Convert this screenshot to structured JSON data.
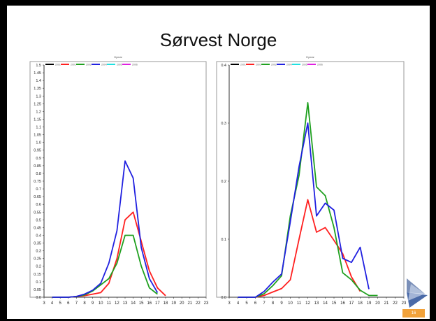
{
  "slide": {
    "title": "Sørvest Norge",
    "page_number": "16"
  },
  "chart_data": [
    {
      "type": "line",
      "title": "Hymar",
      "x_ticks": [
        3,
        4,
        5,
        6,
        7,
        8,
        9,
        10,
        11,
        12,
        13,
        14,
        15,
        16,
        17,
        18,
        19,
        20,
        21,
        22,
        23
      ],
      "y_ticks": [
        "0.0",
        "0.05",
        "0.1",
        "0.15",
        "0.2",
        "0.25",
        "0.3",
        "0.35",
        "0.4",
        "0.45",
        "0.5",
        "0.55",
        "0.6",
        "0.65",
        "0.7",
        "0.75",
        "0.8",
        "0.85",
        "0.9",
        "0.95",
        "1.0",
        "1.05",
        "1.1",
        "1.15",
        "1.2",
        "1.25",
        "1.3",
        "1.35",
        "1.4",
        "1.45",
        "1.5"
      ],
      "xlim": [
        3,
        23
      ],
      "ylim": [
        0,
        1.5
      ],
      "legend_position": "top-left",
      "series": [
        {
          "name": "2001",
          "color": "#000000",
          "points": []
        },
        {
          "name": "2001",
          "color": "#ff2020",
          "points": [
            [
              4,
              0
            ],
            [
              5,
              0
            ],
            [
              6,
              0
            ],
            [
              7,
              0.005
            ],
            [
              8,
              0.01
            ],
            [
              9,
              0.02
            ],
            [
              10,
              0.03
            ],
            [
              11,
              0.09
            ],
            [
              12,
              0.25
            ],
            [
              13,
              0.5
            ],
            [
              14,
              0.55
            ],
            [
              15,
              0.36
            ],
            [
              16,
              0.17
            ],
            [
              17,
              0.06
            ],
            [
              18,
              0.01
            ]
          ]
        },
        {
          "name": "2002",
          "color": "#1fa01f",
          "points": [
            [
              4,
              0
            ],
            [
              5,
              0
            ],
            [
              6,
              0
            ],
            [
              7,
              0.005
            ],
            [
              8,
              0.015
            ],
            [
              9,
              0.04
            ],
            [
              10,
              0.08
            ],
            [
              11,
              0.12
            ],
            [
              12,
              0.22
            ],
            [
              13,
              0.4
            ],
            [
              14,
              0.4
            ],
            [
              15,
              0.2
            ],
            [
              16,
              0.06
            ],
            [
              17,
              0.02
            ]
          ]
        },
        {
          "name": "2004",
          "color": "#2020e0",
          "points": [
            [
              4,
              0
            ],
            [
              5,
              0
            ],
            [
              6,
              0
            ],
            [
              7,
              0.005
            ],
            [
              8,
              0.02
            ],
            [
              9,
              0.045
            ],
            [
              10,
              0.09
            ],
            [
              11,
              0.22
            ],
            [
              12,
              0.43
            ],
            [
              13,
              0.88
            ],
            [
              14,
              0.77
            ],
            [
              15,
              0.32
            ],
            [
              16,
              0.12
            ],
            [
              17,
              0.03
            ]
          ]
        },
        {
          "name": "2005",
          "color": "#20e0e0",
          "points": []
        },
        {
          "name": "2006",
          "color": "#e020e0",
          "points": []
        }
      ]
    },
    {
      "type": "line",
      "title": "Hymar",
      "x_ticks": [
        3,
        4,
        5,
        6,
        7,
        8,
        9,
        10,
        11,
        12,
        13,
        14,
        15,
        16,
        17,
        18,
        19,
        20,
        21,
        22,
        23
      ],
      "y_ticks": [
        "0.0",
        "0.1",
        "0.2",
        "0.3",
        "0.4"
      ],
      "xlim": [
        3,
        23
      ],
      "ylim": [
        0,
        0.4
      ],
      "legend_position": "top-left",
      "series": [
        {
          "name": "2001",
          "color": "#000000",
          "points": []
        },
        {
          "name": "2001",
          "color": "#ff2020",
          "points": [
            [
              4,
              0
            ],
            [
              5,
              0
            ],
            [
              6,
              0
            ],
            [
              7,
              0.003
            ],
            [
              8,
              0.009
            ],
            [
              9,
              0.015
            ],
            [
              10,
              0.03
            ],
            [
              11,
              0.1
            ],
            [
              12,
              0.168
            ],
            [
              13,
              0.112
            ],
            [
              14,
              0.12
            ],
            [
              15,
              0.098
            ],
            [
              16,
              0.075
            ],
            [
              17,
              0.035
            ],
            [
              18,
              0.01
            ]
          ]
        },
        {
          "name": "2002",
          "color": "#1fa01f",
          "points": [
            [
              4,
              0
            ],
            [
              5,
              0
            ],
            [
              6,
              0
            ],
            [
              7,
              0.006
            ],
            [
              8,
              0.02
            ],
            [
              9,
              0.037
            ],
            [
              10,
              0.14
            ],
            [
              11,
              0.21
            ],
            [
              12,
              0.335
            ],
            [
              13,
              0.19
            ],
            [
              14,
              0.175
            ],
            [
              15,
              0.12
            ],
            [
              16,
              0.042
            ],
            [
              17,
              0.03
            ],
            [
              18,
              0.012
            ],
            [
              19,
              0.003
            ],
            [
              20,
              0.003
            ]
          ]
        },
        {
          "name": "2004",
          "color": "#2020e0",
          "points": [
            [
              4,
              0
            ],
            [
              5,
              0
            ],
            [
              6,
              0
            ],
            [
              7,
              0.01
            ],
            [
              8,
              0.026
            ],
            [
              9,
              0.04
            ],
            [
              10,
              0.13
            ],
            [
              11,
              0.225
            ],
            [
              12,
              0.3
            ],
            [
              13,
              0.14
            ],
            [
              14,
              0.162
            ],
            [
              15,
              0.15
            ],
            [
              16,
              0.067
            ],
            [
              17,
              0.06
            ],
            [
              18,
              0.086
            ],
            [
              19,
              0.014
            ]
          ]
        },
        {
          "name": "2005",
          "color": "#20e0e0",
          "points": []
        },
        {
          "name": "2006",
          "color": "#e020e0",
          "points": []
        }
      ]
    }
  ]
}
